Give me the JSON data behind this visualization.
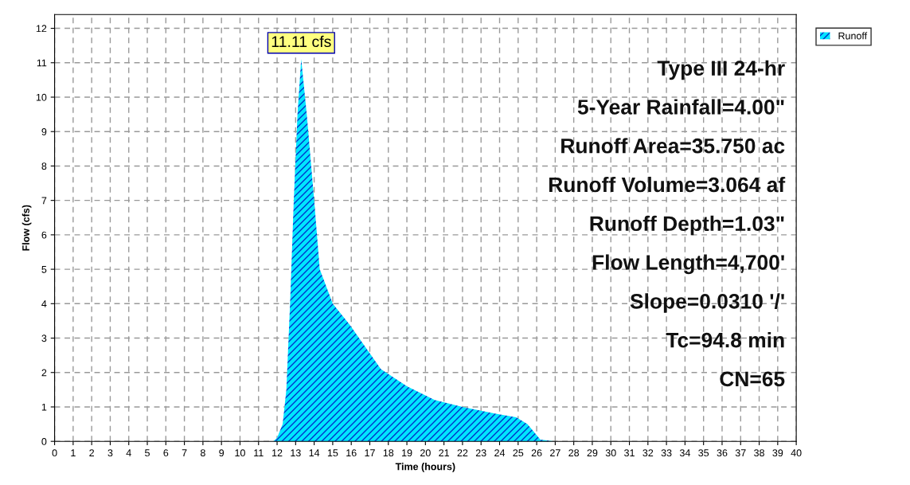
{
  "chart_data": {
    "type": "area",
    "xlabel": "Time (hours)",
    "ylabel": "Flow (cfs)",
    "x": [
      0,
      11.8,
      12.0,
      12.3,
      12.5,
      12.7,
      12.9,
      13.1,
      13.3,
      13.6,
      14.0,
      14.3,
      15.0,
      15.9,
      17.6,
      19.0,
      20.5,
      22.0,
      23.8,
      24.9,
      25.5,
      26.2,
      27.0,
      40
    ],
    "series": [
      {
        "name": "Runoff",
        "color": "#00e5ff",
        "values": [
          0,
          0,
          0.1,
          0.5,
          1.5,
          4,
          7,
          9.5,
          11.11,
          9.5,
          7.0,
          5.0,
          4.0,
          3.4,
          2.1,
          1.6,
          1.2,
          1.0,
          0.8,
          0.7,
          0.5,
          0.05,
          0,
          0
        ]
      }
    ],
    "xlim": [
      0,
      40
    ],
    "ylim": [
      0,
      12.4
    ],
    "xticks": [
      0,
      1,
      2,
      3,
      4,
      5,
      6,
      7,
      8,
      9,
      10,
      11,
      12,
      13,
      14,
      15,
      16,
      17,
      18,
      19,
      20,
      21,
      22,
      23,
      24,
      25,
      26,
      27,
      28,
      29,
      30,
      31,
      32,
      33,
      34,
      35,
      36,
      37,
      38,
      39,
      40
    ],
    "yticks": [
      0,
      1,
      2,
      3,
      4,
      5,
      6,
      7,
      8,
      9,
      10,
      11,
      12
    ],
    "annotations": [
      {
        "text": "11.11 cfs",
        "x": 13.3,
        "y": 11.11
      },
      "Type III 24-hr",
      "5-Year Rainfall=4.00\"",
      "Runoff Area=35.750 ac",
      "Runoff Volume=3.064 af",
      "Runoff Depth=1.03\"",
      "Flow Length=4,700'",
      "Slope=0.0310 '/'",
      "Tc=94.8 min",
      "CN=65"
    ],
    "grid": true,
    "legend": "top right"
  }
}
